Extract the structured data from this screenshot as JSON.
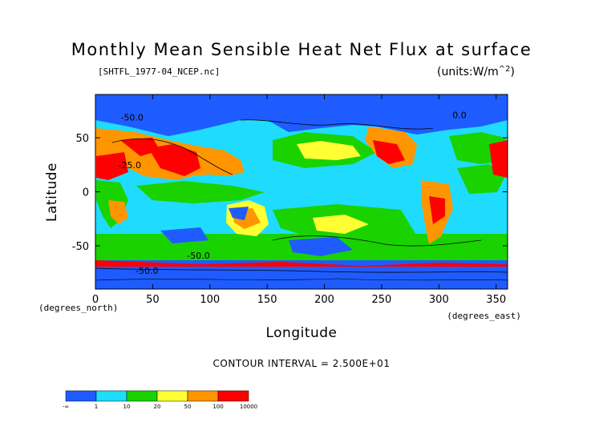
{
  "chart_data": {
    "type": "heatmap",
    "title": "Monthly Mean Sensible Heat Net Flux at surface",
    "subtitle": "[SHTFL_1977-04_NCEP.nc]",
    "units": "(units:W/m^2)",
    "xlabel": "Longitude",
    "ylabel": "Latitude",
    "xunit_label": "(degrees_east)",
    "yunit_label": "(degrees_north)",
    "xlim": [
      0,
      360
    ],
    "ylim": [
      -90,
      90
    ],
    "xticks": [
      0,
      50,
      100,
      150,
      200,
      250,
      300,
      350
    ],
    "yticks": [
      -50,
      0,
      50
    ],
    "contour_interval": "CONTOUR INTERVAL = 2.500E+01",
    "contour_labels": [
      {
        "text": "-50.0",
        "lon": 32,
        "lat": 66
      },
      {
        "text": "-25.0",
        "lon": 30,
        "lat": 22
      },
      {
        "text": "-50.0",
        "lon": 90,
        "lat": -62
      },
      {
        "text": "-50.0",
        "lon": 45,
        "lat": -76
      },
      {
        "text": "0.0",
        "lon": 318,
        "lat": 68
      }
    ],
    "colorbar": {
      "colors": [
        "#1f5cff",
        "#1fdcff",
        "#19d200",
        "#ffff33",
        "#ff9600",
        "#ff0000"
      ],
      "tick_labels": [
        "-∞",
        "1",
        "10",
        "20",
        "50",
        "100",
        "10000"
      ]
    }
  }
}
